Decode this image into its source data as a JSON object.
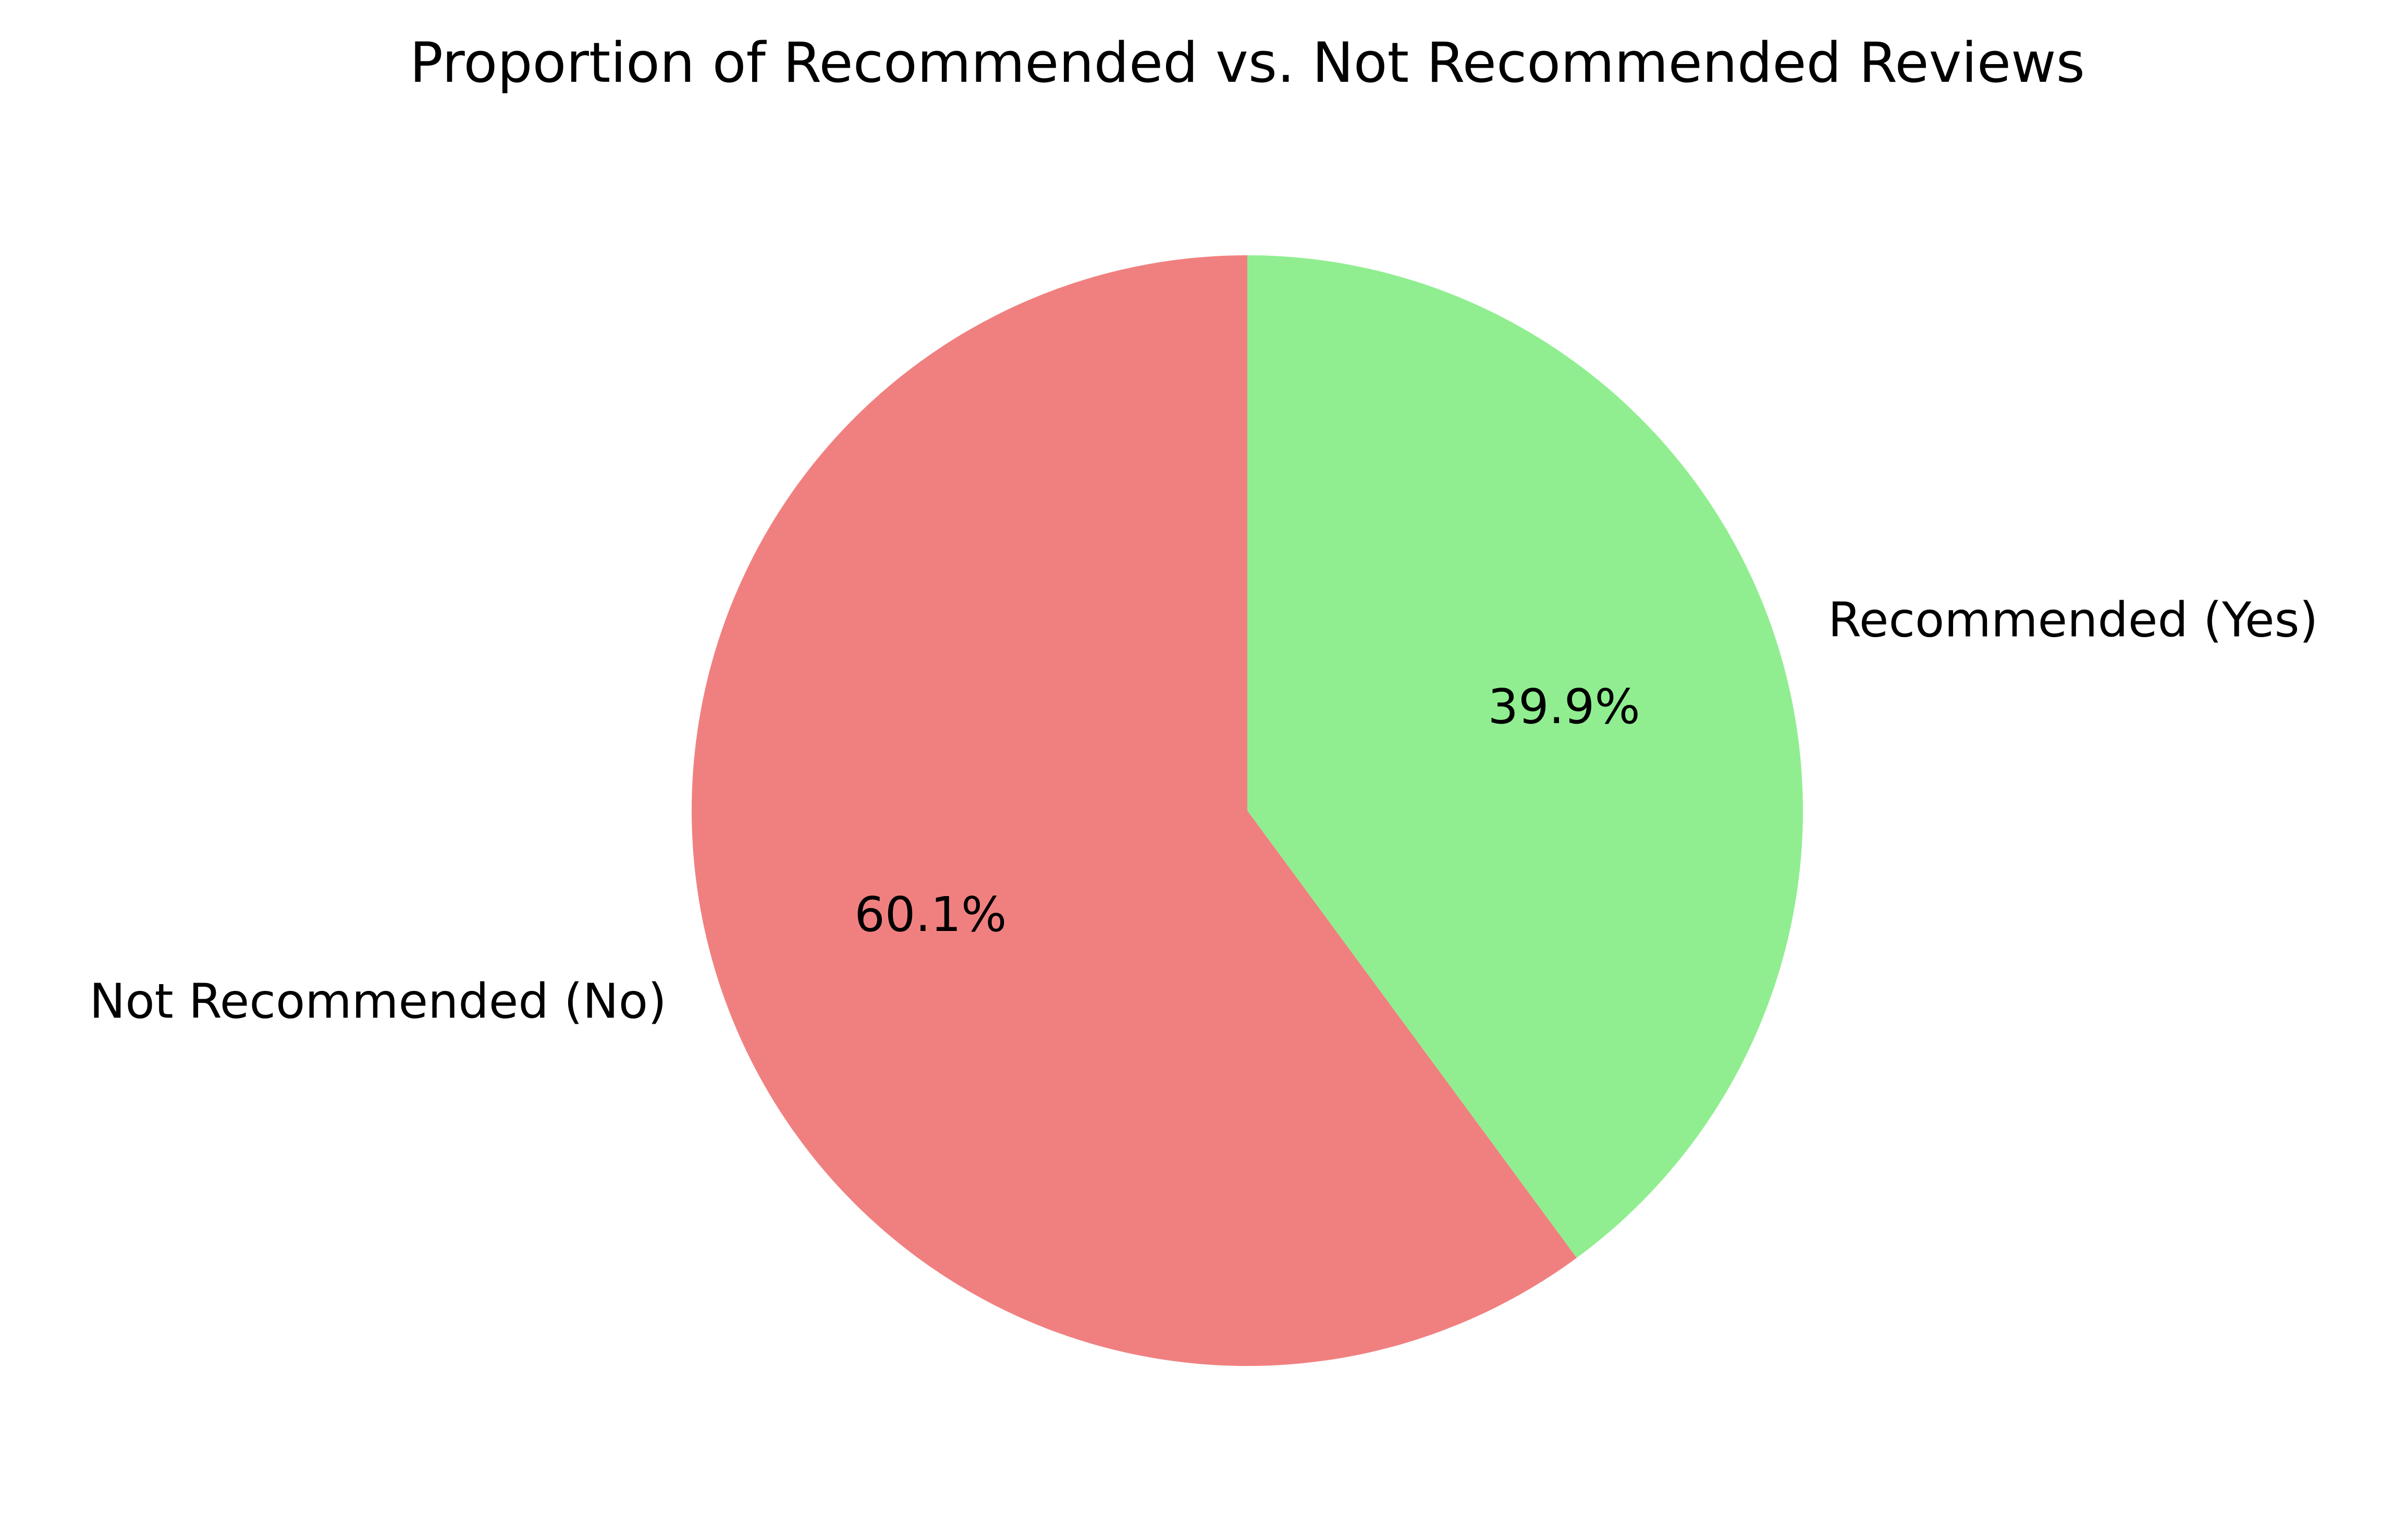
{
  "chart_data": {
    "type": "pie",
    "title": "Proportion of Recommended vs. Not Recommended Reviews",
    "start_angle_deg": 90,
    "direction": "clockwise",
    "slices": [
      {
        "label": "Recommended (Yes)",
        "value": 39.9,
        "autopct": "39.9%",
        "color": "#90ee90"
      },
      {
        "label": "Not Recommended (No)",
        "value": 60.1,
        "autopct": "60.1%",
        "color": "#f08080"
      }
    ]
  }
}
